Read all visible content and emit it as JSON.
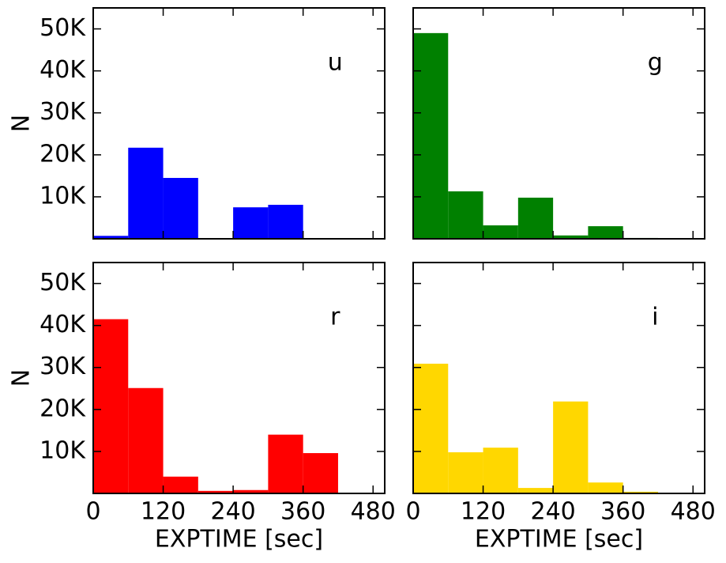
{
  "chart_data": [
    {
      "type": "histogram",
      "annotation": "u",
      "ylabel": "N",
      "color": "#0000ff",
      "bins": [
        0,
        60,
        120,
        180,
        240,
        300,
        360,
        420,
        480
      ],
      "values": [
        700,
        21700,
        14500,
        0,
        7500,
        8100,
        0,
        0
      ],
      "xlim": [
        0,
        500
      ],
      "xticks": [
        0,
        120,
        240,
        360,
        480
      ],
      "show_xticklabels": false,
      "ylim": [
        0,
        55000
      ],
      "yticks": [
        {
          "value": 10000,
          "label": "10K"
        },
        {
          "value": 20000,
          "label": "20K"
        },
        {
          "value": 30000,
          "label": "30K"
        },
        {
          "value": 40000,
          "label": "40K"
        },
        {
          "value": 50000,
          "label": "50K"
        }
      ],
      "show_yticklabels": true
    },
    {
      "type": "histogram",
      "annotation": "g",
      "color": "#008000",
      "bins": [
        0,
        60,
        120,
        180,
        240,
        300,
        360,
        420,
        480
      ],
      "values": [
        49000,
        11300,
        3200,
        9800,
        800,
        3000,
        200,
        0
      ],
      "xlim": [
        0,
        500
      ],
      "xticks": [
        0,
        120,
        240,
        360,
        480
      ],
      "show_xticklabels": false,
      "ylim": [
        0,
        55000
      ],
      "yticks": [
        10000,
        20000,
        30000,
        40000,
        50000
      ],
      "show_yticklabels": false
    },
    {
      "type": "histogram",
      "annotation": "r",
      "ylabel": "N",
      "xlabel": "EXPTIME [sec]",
      "color": "#ff0000",
      "bins": [
        0,
        60,
        120,
        180,
        240,
        300,
        360,
        420,
        480
      ],
      "values": [
        41500,
        25100,
        4000,
        600,
        800,
        14000,
        9600,
        0
      ],
      "xlim": [
        0,
        500
      ],
      "xticks": [
        0,
        120,
        240,
        360,
        480
      ],
      "show_xticklabels": true,
      "ylim": [
        0,
        55000
      ],
      "yticks": [
        {
          "value": 10000,
          "label": "10K"
        },
        {
          "value": 20000,
          "label": "20K"
        },
        {
          "value": 30000,
          "label": "30K"
        },
        {
          "value": 40000,
          "label": "40K"
        },
        {
          "value": 50000,
          "label": "50K"
        }
      ],
      "show_yticklabels": true
    },
    {
      "type": "histogram",
      "annotation": "i",
      "xlabel": "EXPTIME [sec]",
      "color": "#ffd700",
      "bins": [
        0,
        60,
        120,
        180,
        240,
        300,
        360,
        420,
        480
      ],
      "values": [
        30900,
        9800,
        10900,
        1300,
        21900,
        2600,
        400,
        0
      ],
      "xlim": [
        0,
        500
      ],
      "xticks": [
        0,
        120,
        240,
        360,
        480
      ],
      "show_xticklabels": true,
      "ylim": [
        0,
        55000
      ],
      "yticks": [
        10000,
        20000,
        30000,
        40000,
        50000
      ],
      "show_yticklabels": false
    }
  ]
}
